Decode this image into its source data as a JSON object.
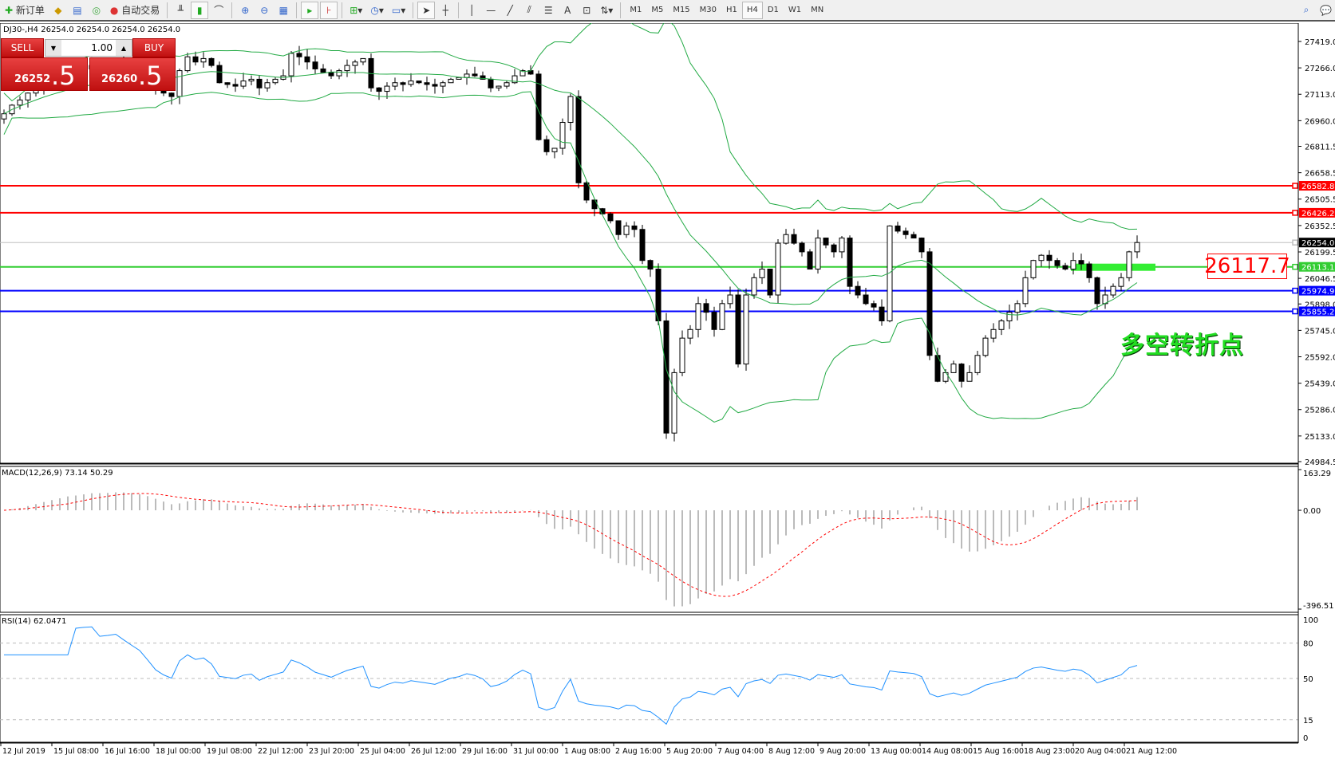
{
  "toolbar": {
    "new_order": "新订单",
    "auto_trading": "自动交易",
    "timeframes": [
      "M1",
      "M5",
      "M15",
      "M30",
      "H1",
      "H4",
      "D1",
      "W1",
      "MN"
    ],
    "active_timeframe": "H4"
  },
  "chart": {
    "title": "DJ30-,H4  26254.0 26254.0 26254.0 26254.0",
    "trade_panel": {
      "sell": "SELL",
      "buy": "BUY",
      "lot": "1.00",
      "sell_main": "26252",
      "sell_frac": ".5",
      "buy_main": "26260",
      "buy_frac": ".5"
    },
    "price_ticks": [
      "27419.0",
      "27266.0",
      "27113.0",
      "26960.0",
      "26811.5",
      "26658.5",
      "26505.5",
      "26352.5",
      "26199.5",
      "26046.5",
      "25898.0",
      "25745.0",
      "25592.0",
      "25439.0",
      "25286.0",
      "25133.0",
      "24984.5"
    ],
    "price_range": [
      24984.5,
      27419.0
    ],
    "hlines": [
      {
        "price": 26582.8,
        "label": "26582.8",
        "color": "#ff0000"
      },
      {
        "price": 26426.2,
        "label": "26426.2",
        "color": "#ff0000"
      },
      {
        "price": 26254.0,
        "label": "26254.0",
        "color": "#c0c0c0",
        "tag": "#000000"
      },
      {
        "price": 26113.1,
        "label": "26113.1",
        "color": "#32cd32"
      },
      {
        "price": 25974.9,
        "label": "25974.9",
        "color": "#0000ff"
      },
      {
        "price": 25855.2,
        "label": "25855.2",
        "color": "#0000ff"
      }
    ],
    "pivot_label": "26117.7",
    "annotation": "多空转折点",
    "time_labels": [
      "12 Jul 2019",
      "15 Jul 08:00",
      "16 Jul 16:00",
      "18 Jul 00:00",
      "19 Jul 08:00",
      "22 Jul 12:00",
      "23 Jul 20:00",
      "25 Jul 04:00",
      "26 Jul 12:00",
      "29 Jul 16:00",
      "31 Jul 00:00",
      "1 Aug 08:00",
      "2 Aug 16:00",
      "5 Aug 20:00",
      "7 Aug 04:00",
      "8 Aug 12:00",
      "9 Aug 20:00",
      "13 Aug 00:00",
      "14 Aug 08:00",
      "15 Aug 16:00",
      "18 Aug 23:00",
      "20 Aug 04:00",
      "21 Aug 12:00"
    ],
    "macd": {
      "label": "MACD(12,26,9) 73.14 50.29",
      "max": "163.29",
      "zero": "0.00",
      "min": "-396.51",
      "range": [
        -396.51,
        163.29
      ]
    },
    "rsi": {
      "label": "RSI(14) 62.0471",
      "levels": [
        "100",
        "80",
        "50",
        "15",
        "0"
      ]
    }
  },
  "chart_data": {
    "type": "candlestick",
    "closes": [
      27000,
      27050,
      27080,
      27120,
      27150,
      27180,
      27200,
      27220,
      27250,
      27230,
      27260,
      27280,
      27250,
      27270,
      27300,
      27280,
      27260,
      27240,
      27200,
      27150,
      27120,
      27100,
      27250,
      27330,
      27300,
      27320,
      27280,
      27180,
      27170,
      27160,
      27190,
      27200,
      27150,
      27180,
      27200,
      27220,
      27350,
      27330,
      27300,
      27260,
      27240,
      27220,
      27250,
      27280,
      27300,
      27320,
      27150,
      27130,
      27160,
      27180,
      27170,
      27190,
      27180,
      27170,
      27160,
      27180,
      27200,
      27210,
      27230,
      27220,
      27200,
      27150,
      27160,
      27180,
      27220,
      27250,
      27230,
      26850,
      26780,
      26800,
      26950,
      27100,
      26600,
      26500,
      26450,
      26420,
      26380,
      26300,
      26350,
      26330,
      26150,
      26100,
      25800,
      25150,
      25500,
      25700,
      25750,
      25900,
      25850,
      25750,
      25900,
      25950,
      25550,
      25950,
      26050,
      26100,
      25950,
      26250,
      26300,
      26250,
      26200,
      26100,
      26280,
      26240,
      26200,
      26280,
      26000,
      25950,
      25900,
      25880,
      25800,
      26350,
      26320,
      26300,
      26280,
      26200,
      25600,
      25450,
      25500,
      25550,
      25450,
      25500,
      25600,
      25700,
      25750,
      25800,
      25850,
      25900,
      26050,
      26150,
      26180,
      26150,
      26120,
      26100,
      26150,
      26130,
      26050,
      25900,
      25950,
      26000,
      26050,
      26200,
      26254
    ],
    "bands_color": "#22aa44",
    "macd_signal_color": "#ff0000",
    "rsi_color": "#1e90ff"
  }
}
